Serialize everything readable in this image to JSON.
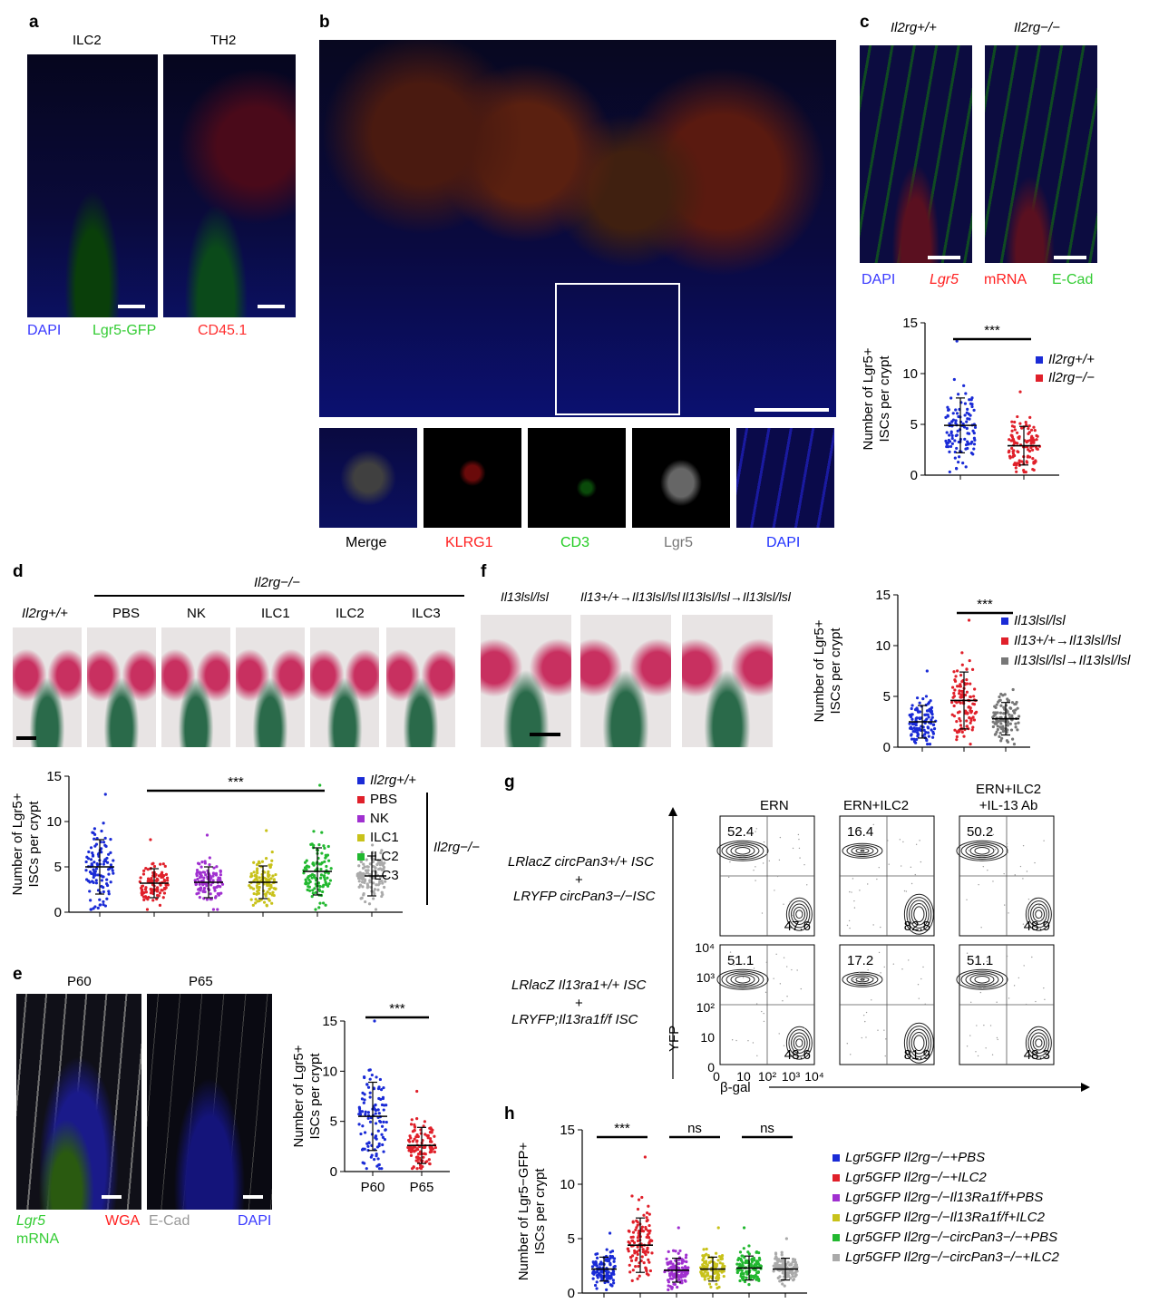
{
  "panels": {
    "a": {
      "label": "a",
      "titles": [
        "ILC2",
        "TH2"
      ],
      "legend": [
        {
          "text": "DAPI",
          "color": "#3a3aff"
        },
        {
          "text": "Lgr5-GFP",
          "color": "#33cc33"
        },
        {
          "text": "CD45.1",
          "color": "#ff3030"
        }
      ]
    },
    "b": {
      "label": "b",
      "strip": [
        "Merge",
        "KLRG1",
        "CD3",
        "Lgr5",
        "DAPI"
      ],
      "strip_colors": [
        "#000000",
        "#ff2020",
        "#22cc22",
        "#777777",
        "#2233ff"
      ]
    },
    "c": {
      "label": "c",
      "titles": [
        "Il2rg+/+",
        "Il2rg−/−"
      ],
      "legend": [
        {
          "text": "DAPI",
          "color": "#3a3aff"
        },
        {
          "text": "Lgr5",
          "color": "#ff2020",
          "italic": true
        },
        {
          "text": "mRNA",
          "color": "#ff2020"
        },
        {
          "text": "E-Cad",
          "color": "#33cc33"
        }
      ]
    },
    "d": {
      "label": "d",
      "header": "Il2rg−/−",
      "cols": [
        "Il2rg+/+",
        "PBS",
        "NK",
        "ILC1",
        "ILC2",
        "ILC3"
      ]
    },
    "e": {
      "label": "e",
      "titles": [
        "P60",
        "P65"
      ],
      "legend": [
        {
          "text": "Lgr5",
          "color": "#33cc33"
        },
        {
          "text": "mRNA",
          "color": "#33cc33"
        },
        {
          "text": "WGA",
          "color": "#ff2020"
        },
        {
          "text": "E-Cad",
          "color": "#999999"
        },
        {
          "text": "DAPI",
          "color": "#3a3aff"
        }
      ]
    },
    "f": {
      "label": "f",
      "cols": [
        "Il13lsl/lsl",
        "Il13+/+→Il13lsl/lsl",
        "Il13lsl/lsl→Il13lsl/lsl"
      ]
    },
    "g": {
      "label": "g",
      "cols": [
        "ERN",
        "ERN+ILC2",
        "ERN+ILC2\n+IL-13 Ab"
      ],
      "rows": [
        "LRlacZ circPan3+/+ ISC + LRYFP circPan3−/− ISC",
        "LRlacZ Il13ra1+/+ ISC + LRYFP;Il13ra1f/f ISC"
      ],
      "row1_lines": [
        "LRlacZ circPan3+/+ ISC",
        "+",
        "LRYFP circPan3−/−ISC"
      ],
      "row2_lines": [
        "LRlacZ Il13ra1+/+ ISC",
        "+",
        "LRYFP;Il13ra1f/f ISC"
      ],
      "top_values": [
        [
          "52.4",
          "47.6"
        ],
        [
          "16.4",
          "82.8"
        ],
        [
          "50.2",
          "48.9"
        ]
      ],
      "bottom_values": [
        [
          "51.1",
          "48.6"
        ],
        [
          "17.2",
          "81.9"
        ],
        [
          "51.1",
          "48.3"
        ]
      ],
      "xaxis": "β-gal",
      "yaxis": "YFP",
      "xticks": [
        "0",
        "10",
        "10²",
        "10³",
        "10⁴"
      ],
      "yticks": [
        "10⁴",
        "10³",
        "10²",
        "10",
        "0"
      ]
    },
    "h": {
      "label": "h"
    }
  },
  "chart_data": [
    {
      "id": "c",
      "type": "scatter",
      "ylabel": "Number of Lgr5+ ISCs per crypt",
      "ylim": [
        0,
        15
      ],
      "yticks": [
        0,
        5,
        10,
        15
      ],
      "series": [
        {
          "name": "Il2rg+/+",
          "mean": 4.9,
          "sd": 2.7,
          "max": 13.2,
          "color": "#1a2bd6"
        },
        {
          "name": "Il2rg−/−",
          "mean": 2.9,
          "sd": 1.9,
          "max": 8.2,
          "color": "#e0202a"
        }
      ],
      "significance": [
        {
          "from": 0,
          "to": 1,
          "text": "***"
        }
      ]
    },
    {
      "id": "d",
      "type": "scatter",
      "ylabel": "Number of Lgr5+ ISCs per crypt",
      "ylim": [
        0,
        15
      ],
      "yticks": [
        0,
        5,
        10,
        15
      ],
      "group_label": "Il2rg−/−",
      "series": [
        {
          "name": "Il2rg+/+",
          "mean": 5.0,
          "sd": 3.0,
          "max": 13,
          "color": "#1a2bd6"
        },
        {
          "name": "PBS",
          "mean": 3.2,
          "sd": 1.6,
          "max": 8,
          "color": "#e0202a"
        },
        {
          "name": "NK",
          "mean": 3.3,
          "sd": 1.7,
          "max": 8.5,
          "color": "#a030d0"
        },
        {
          "name": "ILC1",
          "mean": 3.3,
          "sd": 1.8,
          "max": 9,
          "color": "#c8c21a"
        },
        {
          "name": "ILC2",
          "mean": 4.5,
          "sd": 2.6,
          "max": 14,
          "color": "#22b830"
        },
        {
          "name": "ILC3",
          "mean": 4.0,
          "sd": 2.2,
          "max": 10,
          "color": "#aaaaaa"
        }
      ],
      "significance": [
        {
          "from": 1,
          "to": 4,
          "text": "***"
        }
      ]
    },
    {
      "id": "e",
      "type": "scatter",
      "ylabel": "Number of Lgr5+ ISCs per crypt",
      "ylim": [
        0,
        15
      ],
      "yticks": [
        0,
        5,
        10,
        15
      ],
      "categories": [
        "P60",
        "P65"
      ],
      "series": [
        {
          "name": "P60",
          "mean": 5.5,
          "sd": 3.4,
          "max": 15,
          "color": "#1a2bd6"
        },
        {
          "name": "P65",
          "mean": 2.6,
          "sd": 1.8,
          "max": 8,
          "color": "#e0202a"
        }
      ],
      "significance": [
        {
          "from": 0,
          "to": 1,
          "text": "***"
        }
      ]
    },
    {
      "id": "f",
      "type": "scatter",
      "ylabel": "Number of Lgr5+ ISCs per crypt",
      "ylim": [
        0,
        15
      ],
      "yticks": [
        0,
        5,
        10,
        15
      ],
      "series": [
        {
          "name": "Il13lsl/lsl",
          "mean": 2.5,
          "sd": 1.6,
          "max": 7.5,
          "color": "#1a2bd6"
        },
        {
          "name": "Il13+/+→Il13lsl/lsl",
          "mean": 4.6,
          "sd": 2.8,
          "max": 12.5,
          "color": "#e0202a"
        },
        {
          "name": "Il13lsl/lsl→Il13lsl/lsl",
          "mean": 2.8,
          "sd": 1.6,
          "max": 8.5,
          "color": "#777777"
        }
      ],
      "significance": [
        {
          "from": 1,
          "to": 2,
          "text": "***"
        }
      ]
    },
    {
      "id": "h",
      "type": "scatter",
      "ylabel": "Number of Lgr5−GFP+ ISCs per crypt",
      "ylim": [
        0,
        15
      ],
      "yticks": [
        0,
        5,
        10,
        15
      ],
      "series": [
        {
          "name": "Lgr5GFP Il2rg−/−+PBS",
          "mean": 2.2,
          "sd": 1.1,
          "max": 5.5,
          "color": "#1a2bd6"
        },
        {
          "name": "Lgr5GFP Il2rg−/−+ILC2",
          "mean": 4.4,
          "sd": 2.5,
          "max": 12.5,
          "color": "#e0202a"
        },
        {
          "name": "Lgr5GFP Il2rg−/−Il13Ra1f/f+PBS",
          "mean": 2.1,
          "sd": 1.1,
          "max": 6,
          "color": "#a030d0"
        },
        {
          "name": "Lgr5GFP Il2rg−/−Il13Ra1f/f+ILC2",
          "mean": 2.2,
          "sd": 1.1,
          "max": 6,
          "color": "#c8c21a"
        },
        {
          "name": "Lgr5GFP Il2rg−/−circPan3−/−+PBS",
          "mean": 2.3,
          "sd": 1.1,
          "max": 6,
          "color": "#22b830"
        },
        {
          "name": "Lgr5GFP Il2rg−/−circPan3−/−+ILC2",
          "mean": 2.2,
          "sd": 1.0,
          "max": 5,
          "color": "#aaaaaa"
        }
      ],
      "significance": [
        {
          "from": 0,
          "to": 1,
          "text": "***"
        },
        {
          "from": 2,
          "to": 3,
          "text": "ns"
        },
        {
          "from": 4,
          "to": 5,
          "text": "ns"
        }
      ]
    }
  ],
  "colors": {
    "dapi": "#3a3aff",
    "gfp": "#33cc33",
    "red": "#ff3030"
  }
}
